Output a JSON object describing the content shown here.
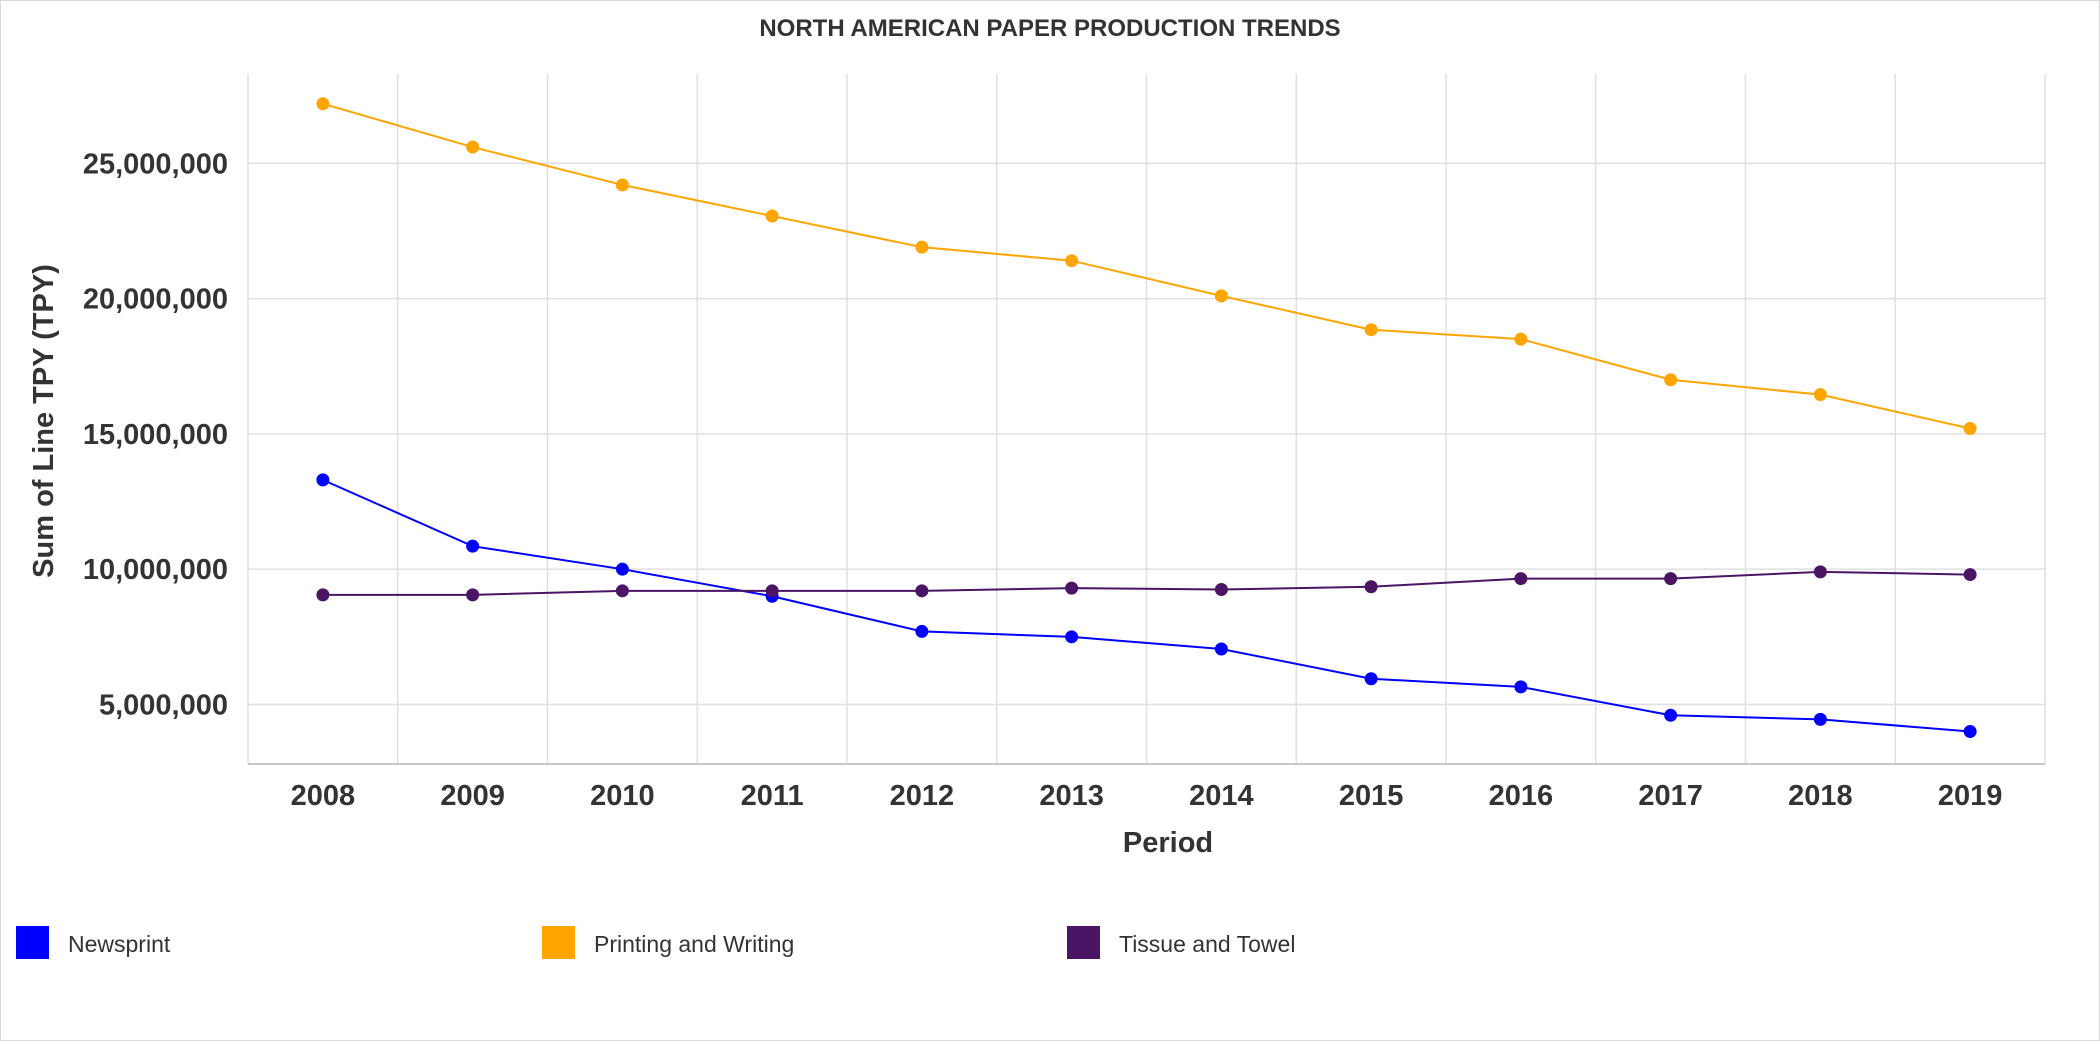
{
  "chart_data": {
    "type": "line",
    "title": "NORTH AMERICAN PAPER PRODUCTION TRENDS",
    "xlabel": "Period",
    "ylabel": "Sum of Line TPY (TPY)",
    "categories": [
      "2008",
      "2009",
      "2010",
      "2011",
      "2012",
      "2013",
      "2014",
      "2015",
      "2016",
      "2017",
      "2018",
      "2019"
    ],
    "y_ticks": [
      5000000,
      10000000,
      15000000,
      20000000,
      25000000
    ],
    "y_tick_labels": [
      "5,000,000",
      "10,000,000",
      "15,000,000",
      "20,000,000",
      "25,000,000"
    ],
    "ylim": [
      2800000,
      28300000
    ],
    "grid": true,
    "legend_position": "bottom",
    "series": [
      {
        "name": "Newsprint",
        "color": "#0000ff",
        "values": [
          13300000,
          10850000,
          10000000,
          9000000,
          7700000,
          7500000,
          7050000,
          5950000,
          5650000,
          4600000,
          4450000,
          4000000
        ]
      },
      {
        "name": "Printing and Writing",
        "color": "#ffa500",
        "values": [
          27200000,
          25600000,
          24200000,
          23050000,
          21900000,
          21400000,
          20100000,
          18850000,
          18500000,
          17000000,
          16450000,
          15200000
        ]
      },
      {
        "name": "Tissue and Towel",
        "color": "#4b1464",
        "values": [
          9050000,
          9050000,
          9200000,
          9200000,
          9200000,
          9300000,
          9250000,
          9350000,
          9650000,
          9650000,
          9900000,
          9800000
        ]
      }
    ]
  }
}
